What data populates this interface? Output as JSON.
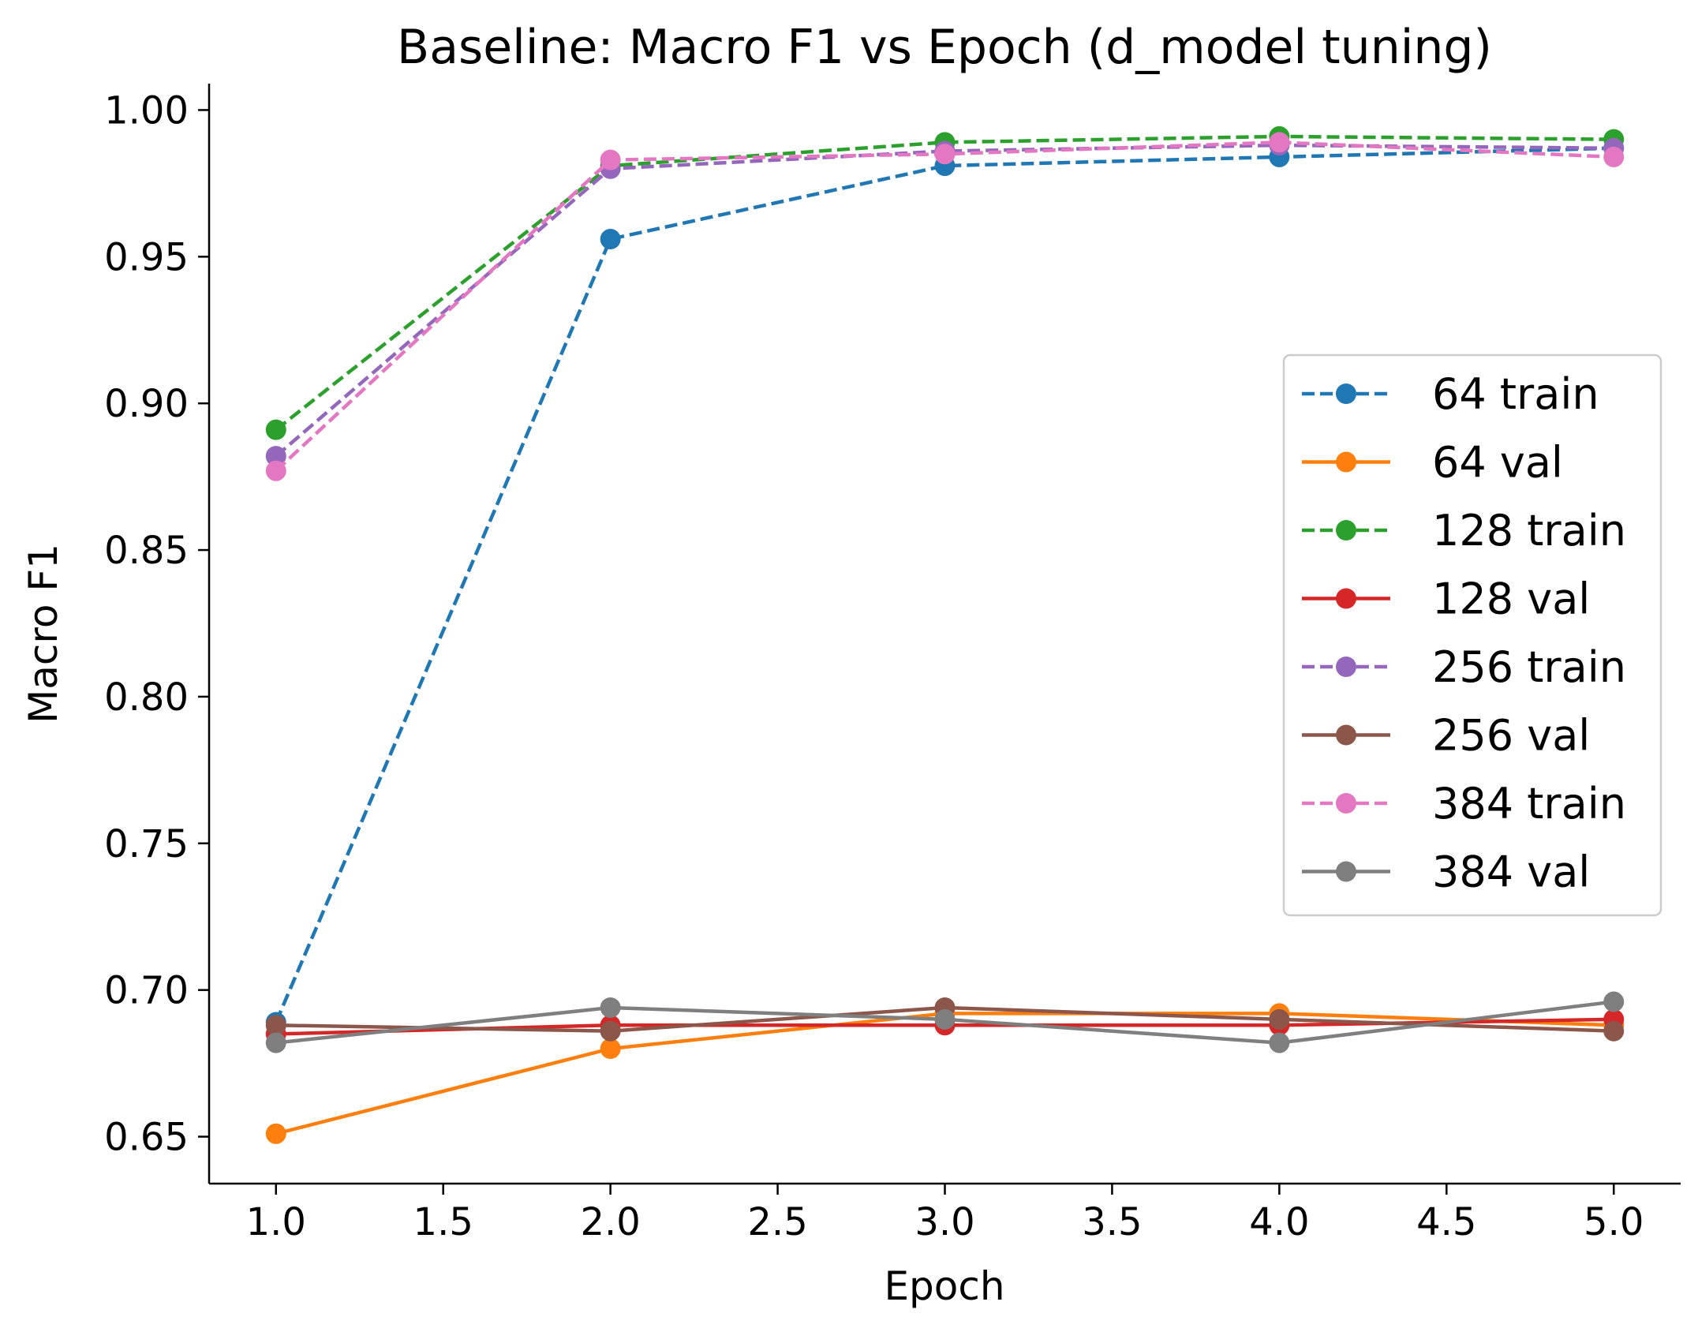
{
  "chart_data": {
    "type": "line",
    "title": "Baseline: Macro F1 vs Epoch (d_model tuning)",
    "xlabel": "Epoch",
    "ylabel": "Macro F1",
    "xlim": [
      0.8,
      5.2
    ],
    "ylim": [
      0.634,
      1.009
    ],
    "xticks": [
      1.0,
      1.5,
      2.0,
      2.5,
      3.0,
      3.5,
      4.0,
      4.5,
      5.0
    ],
    "xtick_labels": [
      "1.0",
      "1.5",
      "2.0",
      "2.5",
      "3.0",
      "3.5",
      "4.0",
      "4.5",
      "5.0"
    ],
    "yticks": [
      0.65,
      0.7,
      0.75,
      0.8,
      0.85,
      0.9,
      0.95,
      1.0
    ],
    "ytick_labels": [
      "0.65",
      "0.70",
      "0.75",
      "0.80",
      "0.85",
      "0.90",
      "0.95",
      "1.00"
    ],
    "grid": false,
    "legend_position": "center-right",
    "x": [
      1,
      2,
      3,
      4,
      5
    ],
    "series": [
      {
        "name": "64 train",
        "color": "#1f77b4",
        "dashed": true,
        "values": [
          0.689,
          0.956,
          0.981,
          0.984,
          0.987
        ]
      },
      {
        "name": "64 val",
        "color": "#ff7f0e",
        "dashed": false,
        "values": [
          0.651,
          0.68,
          0.692,
          0.692,
          0.688
        ]
      },
      {
        "name": "128 train",
        "color": "#2ca02c",
        "dashed": true,
        "values": [
          0.891,
          0.981,
          0.989,
          0.991,
          0.99
        ]
      },
      {
        "name": "128 val",
        "color": "#d62728",
        "dashed": false,
        "values": [
          0.685,
          0.688,
          0.688,
          0.688,
          0.69
        ]
      },
      {
        "name": "256 train",
        "color": "#9467bd",
        "dashed": true,
        "values": [
          0.882,
          0.98,
          0.986,
          0.988,
          0.987
        ]
      },
      {
        "name": "256 val",
        "color": "#8c564b",
        "dashed": false,
        "values": [
          0.688,
          0.686,
          0.694,
          0.69,
          0.686
        ]
      },
      {
        "name": "384 train",
        "color": "#e377c2",
        "dashed": true,
        "values": [
          0.877,
          0.983,
          0.985,
          0.989,
          0.984
        ]
      },
      {
        "name": "384 val",
        "color": "#7f7f7f",
        "dashed": false,
        "values": [
          0.682,
          0.694,
          0.69,
          0.682,
          0.696
        ]
      }
    ]
  }
}
